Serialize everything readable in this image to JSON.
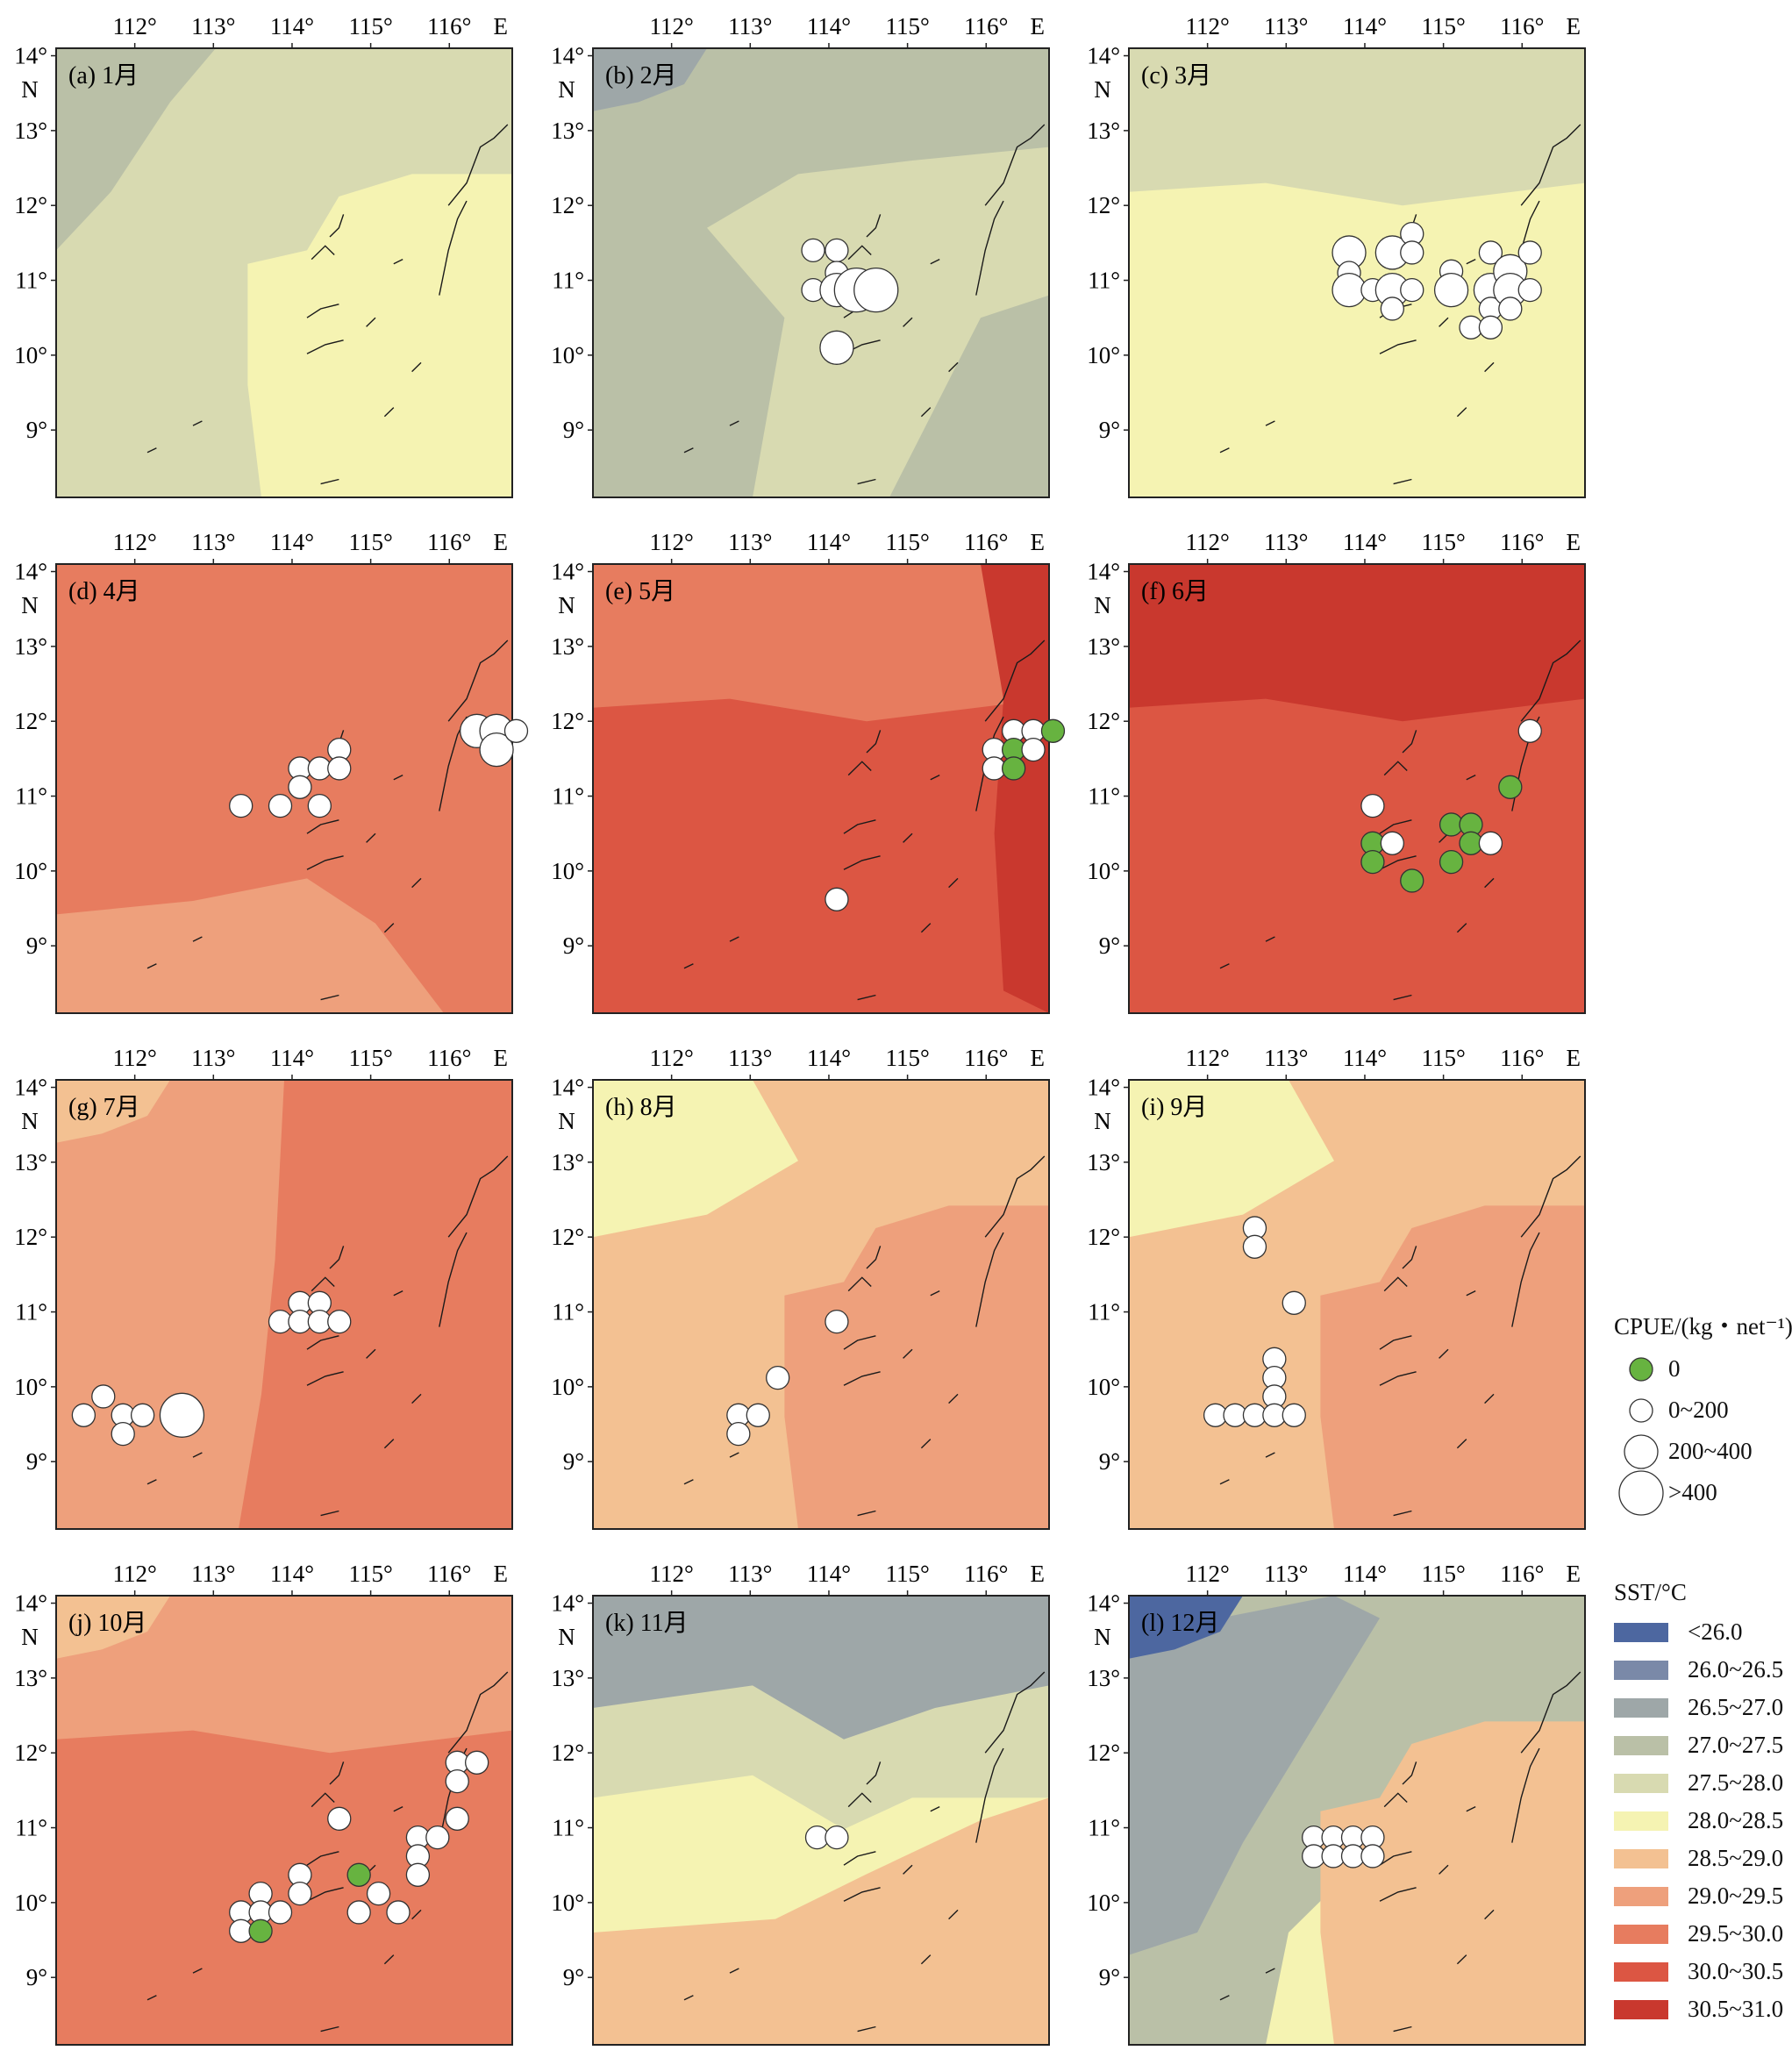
{
  "axes": {
    "x_ticks": [
      "112°",
      "113°",
      "114°",
      "115°",
      "116°"
    ],
    "x_unit": "E",
    "y_ticks": [
      "14°",
      "13°",
      "12°",
      "11°",
      "10°",
      "9°"
    ],
    "y_unit": "N"
  },
  "colors": {
    "coast": "#1a1a1a",
    "zero": "#67b340",
    "sst": [
      "#4d67a0",
      "#7a89a8",
      "#9ea7a8",
      "#bac0a7",
      "#d8dab1",
      "#f5f3b2",
      "#f3c192",
      "#eea07c",
      "#e77c5f",
      "#dc5643",
      "#c9382e"
    ]
  },
  "chart_data": [
    {
      "panel": "(a) 1月",
      "type": "map",
      "background": "27.5~28.0",
      "regions": [
        {
          "class": "27.0~27.5",
          "area": "northwest coast"
        },
        {
          "class": "28.0~28.5",
          "area": "southeast"
        }
      ],
      "catch_points": []
    },
    {
      "panel": "(b) 2月",
      "type": "map",
      "background": "27.0~27.5",
      "regions": [
        {
          "class": "26.5~27.0",
          "area": "northwest corner"
        },
        {
          "class": "27.5~28.0",
          "area": "central south"
        }
      ],
      "catch_points": [
        {
          "lon": 113.8,
          "lat": 11.4,
          "cpue": "0~200"
        },
        {
          "lon": 114.1,
          "lat": 11.4,
          "cpue": "0~200"
        },
        {
          "lon": 113.8,
          "lat": 10.87,
          "cpue": "0~200"
        },
        {
          "lon": 114.1,
          "lat": 11.1,
          "cpue": "0~200"
        },
        {
          "lon": 114.1,
          "lat": 10.87,
          "cpue": "200~400"
        },
        {
          "lon": 114.35,
          "lat": 10.87,
          "cpue": ">400"
        },
        {
          "lon": 114.6,
          "lat": 10.87,
          "cpue": ">400"
        },
        {
          "lon": 114.1,
          "lat": 10.1,
          "cpue": "200~400"
        }
      ]
    },
    {
      "panel": "(c) 3月",
      "type": "map",
      "background": "28.0~28.5",
      "regions": [
        {
          "class": "27.5~28.0",
          "area": "north"
        }
      ],
      "catch_points": [
        {
          "lon": 113.8,
          "lat": 11.37,
          "cpue": "200~400"
        },
        {
          "lon": 113.8,
          "lat": 11.1,
          "cpue": "0~200"
        },
        {
          "lon": 113.8,
          "lat": 10.87,
          "cpue": "200~400"
        },
        {
          "lon": 114.1,
          "lat": 10.87,
          "cpue": "0~200"
        },
        {
          "lon": 114.35,
          "lat": 10.87,
          "cpue": "200~400"
        },
        {
          "lon": 114.35,
          "lat": 11.37,
          "cpue": "200~400"
        },
        {
          "lon": 114.6,
          "lat": 11.62,
          "cpue": "0~200"
        },
        {
          "lon": 114.6,
          "lat": 11.37,
          "cpue": "0~200"
        },
        {
          "lon": 114.6,
          "lat": 10.87,
          "cpue": "0~200"
        },
        {
          "lon": 114.35,
          "lat": 10.62,
          "cpue": "0~200"
        },
        {
          "lon": 115.1,
          "lat": 11.12,
          "cpue": "0~200"
        },
        {
          "lon": 115.1,
          "lat": 10.87,
          "cpue": "200~400"
        },
        {
          "lon": 115.35,
          "lat": 10.37,
          "cpue": "0~200"
        },
        {
          "lon": 115.6,
          "lat": 11.37,
          "cpue": "0~200"
        },
        {
          "lon": 115.6,
          "lat": 10.87,
          "cpue": "200~400"
        },
        {
          "lon": 115.6,
          "lat": 10.62,
          "cpue": "0~200"
        },
        {
          "lon": 115.6,
          "lat": 10.37,
          "cpue": "0~200"
        },
        {
          "lon": 115.85,
          "lat": 11.12,
          "cpue": "200~400"
        },
        {
          "lon": 115.85,
          "lat": 10.87,
          "cpue": "200~400"
        },
        {
          "lon": 115.85,
          "lat": 10.62,
          "cpue": "0~200"
        },
        {
          "lon": 116.1,
          "lat": 11.37,
          "cpue": "0~200"
        },
        {
          "lon": 116.1,
          "lat": 10.87,
          "cpue": "0~200"
        }
      ]
    },
    {
      "panel": "(d) 4月",
      "type": "map",
      "background": "29.5~30.0",
      "regions": [
        {
          "class": "29.0~29.5",
          "area": "south, north corner"
        }
      ],
      "catch_points": [
        {
          "lon": 113.35,
          "lat": 10.87,
          "cpue": "0~200"
        },
        {
          "lon": 113.85,
          "lat": 10.87,
          "cpue": "0~200"
        },
        {
          "lon": 114.1,
          "lat": 11.37,
          "cpue": "0~200"
        },
        {
          "lon": 114.1,
          "lat": 11.12,
          "cpue": "0~200"
        },
        {
          "lon": 114.35,
          "lat": 11.37,
          "cpue": "0~200"
        },
        {
          "lon": 114.35,
          "lat": 10.87,
          "cpue": "0~200"
        },
        {
          "lon": 114.6,
          "lat": 11.62,
          "cpue": "0~200"
        },
        {
          "lon": 114.6,
          "lat": 11.37,
          "cpue": "0~200"
        },
        {
          "lon": 116.35,
          "lat": 11.87,
          "cpue": "200~400"
        },
        {
          "lon": 116.6,
          "lat": 11.87,
          "cpue": "200~400"
        },
        {
          "lon": 116.6,
          "lat": 11.62,
          "cpue": "200~400"
        },
        {
          "lon": 116.85,
          "lat": 11.87,
          "cpue": "0~200"
        }
      ]
    },
    {
      "panel": "(e) 5月",
      "type": "map",
      "background": "30.0~30.5",
      "regions": [
        {
          "class": "29.5~30.0",
          "area": "north"
        },
        {
          "class": "30.5~31.0",
          "area": "east edge"
        }
      ],
      "catch_points": [
        {
          "lon": 116.1,
          "lat": 11.62,
          "cpue": "0~200"
        },
        {
          "lon": 116.1,
          "lat": 11.37,
          "cpue": "0~200"
        },
        {
          "lon": 116.35,
          "lat": 11.87,
          "cpue": "0~200"
        },
        {
          "lon": 116.35,
          "lat": 11.62,
          "cpue": "0"
        },
        {
          "lon": 116.35,
          "lat": 11.37,
          "cpue": "0"
        },
        {
          "lon": 116.6,
          "lat": 11.87,
          "cpue": "0~200"
        },
        {
          "lon": 116.6,
          "lat": 11.62,
          "cpue": "0~200"
        },
        {
          "lon": 116.85,
          "lat": 11.87,
          "cpue": "0"
        },
        {
          "lon": 114.1,
          "lat": 9.62,
          "cpue": "0~200"
        }
      ]
    },
    {
      "panel": "(f) 6月",
      "type": "map",
      "background": "30.0~30.5",
      "regions": [
        {
          "class": "30.5~31.0",
          "area": "north"
        }
      ],
      "catch_points": [
        {
          "lon": 116.1,
          "lat": 11.87,
          "cpue": "0~200"
        },
        {
          "lon": 115.85,
          "lat": 11.12,
          "cpue": "0"
        },
        {
          "lon": 114.1,
          "lat": 10.87,
          "cpue": "0~200"
        },
        {
          "lon": 114.1,
          "lat": 10.37,
          "cpue": "0"
        },
        {
          "lon": 114.1,
          "lat": 10.12,
          "cpue": "0"
        },
        {
          "lon": 114.35,
          "lat": 10.37,
          "cpue": "0~200"
        },
        {
          "lon": 114.6,
          "lat": 9.87,
          "cpue": "0"
        },
        {
          "lon": 115.1,
          "lat": 10.62,
          "cpue": "0"
        },
        {
          "lon": 115.1,
          "lat": 10.12,
          "cpue": "0"
        },
        {
          "lon": 115.35,
          "lat": 10.62,
          "cpue": "0"
        },
        {
          "lon": 115.35,
          "lat": 10.37,
          "cpue": "0"
        },
        {
          "lon": 115.6,
          "lat": 10.37,
          "cpue": "0~200"
        }
      ]
    },
    {
      "panel": "(g) 7月",
      "type": "map",
      "background": "29.0~29.5",
      "regions": [
        {
          "class": "29.5~30.0",
          "area": "east"
        },
        {
          "class": "28.5~29.0",
          "area": "northwest corner"
        }
      ],
      "catch_points": [
        {
          "lon": 111.35,
          "lat": 9.62,
          "cpue": "0~200"
        },
        {
          "lon": 111.6,
          "lat": 9.87,
          "cpue": "0~200"
        },
        {
          "lon": 111.85,
          "lat": 9.62,
          "cpue": "0~200"
        },
        {
          "lon": 111.85,
          "lat": 9.37,
          "cpue": "0~200"
        },
        {
          "lon": 112.1,
          "lat": 9.62,
          "cpue": "0~200"
        },
        {
          "lon": 112.6,
          "lat": 9.62,
          "cpue": ">400"
        },
        {
          "lon": 113.85,
          "lat": 10.87,
          "cpue": "0~200"
        },
        {
          "lon": 114.1,
          "lat": 11.12,
          "cpue": "0~200"
        },
        {
          "lon": 114.1,
          "lat": 10.87,
          "cpue": "0~200"
        },
        {
          "lon": 114.35,
          "lat": 11.12,
          "cpue": "0~200"
        },
        {
          "lon": 114.35,
          "lat": 10.87,
          "cpue": "0~200"
        },
        {
          "lon": 114.6,
          "lat": 10.87,
          "cpue": "0~200"
        }
      ]
    },
    {
      "panel": "(h) 8月",
      "type": "map",
      "background": "28.5~29.0",
      "regions": [
        {
          "class": "28.0~28.5",
          "area": "northwest"
        },
        {
          "class": "29.0~29.5",
          "area": "southeast"
        }
      ],
      "catch_points": [
        {
          "lon": 114.1,
          "lat": 10.87,
          "cpue": "0~200"
        },
        {
          "lon": 113.35,
          "lat": 10.12,
          "cpue": "0~200"
        },
        {
          "lon": 112.85,
          "lat": 9.62,
          "cpue": "0~200"
        },
        {
          "lon": 112.85,
          "lat": 9.37,
          "cpue": "0~200"
        },
        {
          "lon": 113.1,
          "lat": 9.62,
          "cpue": "0~200"
        }
      ]
    },
    {
      "panel": "(i) 9月",
      "type": "map",
      "background": "28.5~29.0",
      "regions": [
        {
          "class": "28.0~28.5",
          "area": "northwest"
        },
        {
          "class": "29.0~29.5",
          "area": "southeast"
        }
      ],
      "catch_points": [
        {
          "lon": 112.6,
          "lat": 12.12,
          "cpue": "0~200"
        },
        {
          "lon": 112.6,
          "lat": 11.87,
          "cpue": "0~200"
        },
        {
          "lon": 113.1,
          "lat": 11.12,
          "cpue": "0~200"
        },
        {
          "lon": 112.85,
          "lat": 10.37,
          "cpue": "0~200"
        },
        {
          "lon": 112.85,
          "lat": 10.12,
          "cpue": "0~200"
        },
        {
          "lon": 112.85,
          "lat": 9.87,
          "cpue": "0~200"
        },
        {
          "lon": 112.1,
          "lat": 9.62,
          "cpue": "0~200"
        },
        {
          "lon": 112.35,
          "lat": 9.62,
          "cpue": "0~200"
        },
        {
          "lon": 112.6,
          "lat": 9.62,
          "cpue": "0~200"
        },
        {
          "lon": 112.85,
          "lat": 9.62,
          "cpue": "0~200"
        },
        {
          "lon": 113.1,
          "lat": 9.62,
          "cpue": "0~200"
        }
      ]
    },
    {
      "panel": "(j) 10月",
      "type": "map",
      "background": "29.5~30.0",
      "regions": [
        {
          "class": "29.0~29.5",
          "area": "north"
        },
        {
          "class": "28.5~29.0",
          "area": "northwest corner"
        }
      ],
      "catch_points": [
        {
          "lon": 113.35,
          "lat": 9.87,
          "cpue": "0~200"
        },
        {
          "lon": 113.35,
          "lat": 9.62,
          "cpue": "0~200"
        },
        {
          "lon": 113.6,
          "lat": 10.12,
          "cpue": "0~200"
        },
        {
          "lon": 113.6,
          "lat": 9.87,
          "cpue": "0~200"
        },
        {
          "lon": 113.6,
          "lat": 9.62,
          "cpue": "0"
        },
        {
          "lon": 113.85,
          "lat": 9.87,
          "cpue": "0~200"
        },
        {
          "lon": 114.1,
          "lat": 10.37,
          "cpue": "0~200"
        },
        {
          "lon": 114.1,
          "lat": 10.12,
          "cpue": "0~200"
        },
        {
          "lon": 114.6,
          "lat": 11.12,
          "cpue": "0~200"
        },
        {
          "lon": 114.85,
          "lat": 10.37,
          "cpue": "0"
        },
        {
          "lon": 114.85,
          "lat": 9.87,
          "cpue": "0~200"
        },
        {
          "lon": 115.1,
          "lat": 10.12,
          "cpue": "0~200"
        },
        {
          "lon": 115.35,
          "lat": 9.87,
          "cpue": "0~200"
        },
        {
          "lon": 115.6,
          "lat": 10.87,
          "cpue": "0~200"
        },
        {
          "lon": 115.6,
          "lat": 10.62,
          "cpue": "0~200"
        },
        {
          "lon": 115.6,
          "lat": 10.37,
          "cpue": "0~200"
        },
        {
          "lon": 115.85,
          "lat": 10.87,
          "cpue": "0~200"
        },
        {
          "lon": 116.1,
          "lat": 11.87,
          "cpue": "0~200"
        },
        {
          "lon": 116.1,
          "lat": 11.62,
          "cpue": "0~200"
        },
        {
          "lon": 116.1,
          "lat": 11.12,
          "cpue": "0~200"
        },
        {
          "lon": 116.35,
          "lat": 11.87,
          "cpue": "0~200"
        }
      ]
    },
    {
      "panel": "(k) 11月",
      "type": "map",
      "background": "28.0~28.5",
      "regions": [
        {
          "class": "26.5~27.0",
          "area": "north"
        },
        {
          "class": "27.5~28.0",
          "area": "north band"
        },
        {
          "class": "28.5~29.0",
          "area": "south"
        }
      ],
      "catch_points": [
        {
          "lon": 113.85,
          "lat": 10.87,
          "cpue": "0~200"
        },
        {
          "lon": 114.1,
          "lat": 10.87,
          "cpue": "0~200"
        }
      ]
    },
    {
      "panel": "(l) 12月",
      "type": "map",
      "background": "27.0~27.5",
      "regions": [
        {
          "class": "<26.0",
          "area": "northwest corner"
        },
        {
          "class": "26.5~27.0",
          "area": "west"
        },
        {
          "class": "28.0~28.5",
          "area": "central band"
        },
        {
          "class": "28.5~29.0",
          "area": "southeast"
        }
      ],
      "catch_points": [
        {
          "lon": 113.35,
          "lat": 10.87,
          "cpue": "0~200"
        },
        {
          "lon": 113.6,
          "lat": 10.87,
          "cpue": "0~200"
        },
        {
          "lon": 113.85,
          "lat": 10.87,
          "cpue": "0~200"
        },
        {
          "lon": 114.1,
          "lat": 10.87,
          "cpue": "0~200"
        },
        {
          "lon": 113.35,
          "lat": 10.62,
          "cpue": "0~200"
        },
        {
          "lon": 113.6,
          "lat": 10.62,
          "cpue": "0~200"
        },
        {
          "lon": 113.85,
          "lat": 10.62,
          "cpue": "0~200"
        },
        {
          "lon": 114.1,
          "lat": 10.62,
          "cpue": "0~200"
        }
      ]
    }
  ],
  "legend_cpue": {
    "title": "CPUE/(kg・net⁻¹)",
    "items": [
      {
        "label": "0",
        "kind": "zero"
      },
      {
        "label": "0~200",
        "kind": "s1"
      },
      {
        "label": "200~400",
        "kind": "s2"
      },
      {
        "label": ">400",
        "kind": "s3"
      }
    ]
  },
  "legend_sst": {
    "title": "SST/°C",
    "items": [
      "<26.0",
      "26.0~26.5",
      "26.5~27.0",
      "27.0~27.5",
      "27.5~28.0",
      "28.0~28.5",
      "28.5~29.0",
      "29.0~29.5",
      "29.5~30.0",
      "30.0~30.5",
      "30.5~31.0"
    ]
  }
}
